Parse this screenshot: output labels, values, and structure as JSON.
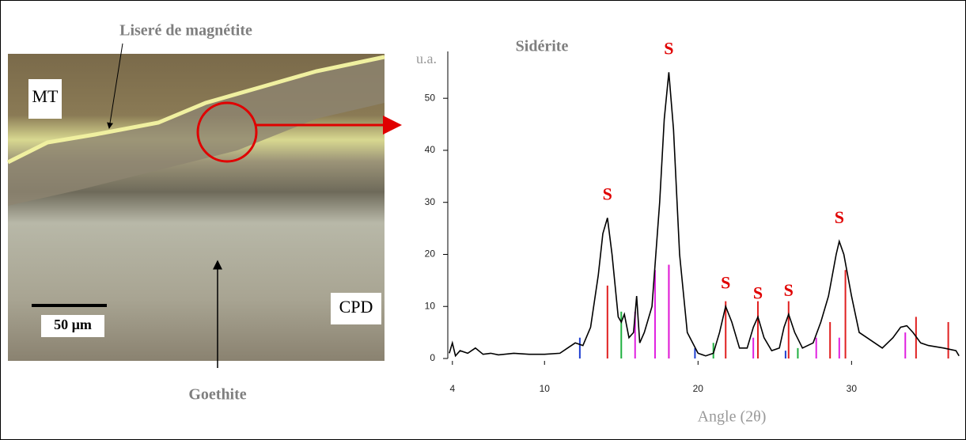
{
  "photo": {
    "labels": {
      "liseré": "Liseré de magnétite",
      "mt": "MT",
      "cpd": "CPD",
      "scale": "50 µm",
      "goethite": "Goethite"
    }
  },
  "chart_data": {
    "type": "line",
    "title": "Sidérite",
    "y_label": "u.a.",
    "x_label": "Angle (2θ)",
    "x": [
      3.8,
      4.0,
      4.2,
      4.5,
      5,
      5.5,
      6,
      6.5,
      7,
      8,
      9,
      10,
      11,
      11.5,
      12,
      12.5,
      13,
      13.5,
      13.8,
      14.1,
      14.4,
      14.8,
      15.0,
      15.2,
      15.5,
      15.8,
      16.0,
      16.2,
      16.5,
      17,
      17.5,
      17.8,
      18.1,
      18.4,
      18.8,
      19.3,
      20,
      20.5,
      21,
      21.4,
      21.8,
      22.2,
      22.7,
      23.2,
      23.6,
      23.9,
      24.3,
      24.8,
      25.3,
      25.6,
      25.9,
      26.3,
      26.8,
      27.5,
      28,
      28.5,
      29,
      29.2,
      29.5,
      30,
      30.5,
      31,
      32,
      32.7,
      33.2,
      33.6,
      34,
      34.5,
      35,
      36,
      36.8,
      37
    ],
    "values": [
      1,
      3,
      0.5,
      1.5,
      1,
      2,
      0.8,
      1,
      0.7,
      1,
      0.8,
      0.8,
      1,
      2,
      3,
      2.5,
      6,
      16,
      24,
      27,
      20,
      8,
      7,
      8.5,
      4,
      5,
      12,
      3,
      5,
      10,
      30,
      46,
      55,
      44,
      20,
      5,
      1,
      0.5,
      1,
      5,
      10,
      7,
      2,
      2,
      6,
      8,
      4,
      1.5,
      2,
      6,
      8.5,
      5,
      2,
      3,
      7,
      12,
      20,
      22.5,
      20,
      12,
      5,
      4,
      2,
      4,
      6,
      6.3,
      5,
      3,
      2.5,
      2,
      1.5,
      0.5
    ],
    "color": "#000000",
    "sticks": [
      {
        "color": "#e02020",
        "x": [
          14.1,
          18.1,
          21.8,
          23.9,
          25.9,
          28.6,
          29.6,
          34.2,
          36.3
        ],
        "values": [
          14,
          18,
          11,
          11,
          11,
          7,
          17,
          8,
          7
        ]
      },
      {
        "color": "#e020e0",
        "x": [
          15.9,
          17.2,
          18.1,
          23.6,
          27.7,
          29.2,
          33.5
        ],
        "values": [
          9,
          17,
          18,
          4,
          4,
          4,
          5
        ]
      },
      {
        "color": "#20b040",
        "x": [
          15.0,
          21.0,
          26.5
        ],
        "values": [
          9,
          3,
          2
        ]
      },
      {
        "color": "#2040d0",
        "x": [
          12.3,
          19.8,
          25.7
        ],
        "values": [
          4,
          2,
          1.5
        ]
      }
    ],
    "annotations": [
      {
        "text": "S",
        "x": 14.1
      },
      {
        "text": "S",
        "x": 18.1
      },
      {
        "text": "S",
        "x": 21.8
      },
      {
        "text": "S",
        "x": 23.9
      },
      {
        "text": "S",
        "x": 25.9
      },
      {
        "text": "S",
        "x": 29.2
      }
    ],
    "xlim": [
      3.7,
      37.3
    ],
    "ylim": [
      0,
      59
    ],
    "xticks": [
      4,
      10,
      20,
      30
    ],
    "yticks": [
      0,
      10,
      20,
      30,
      40,
      50
    ]
  }
}
